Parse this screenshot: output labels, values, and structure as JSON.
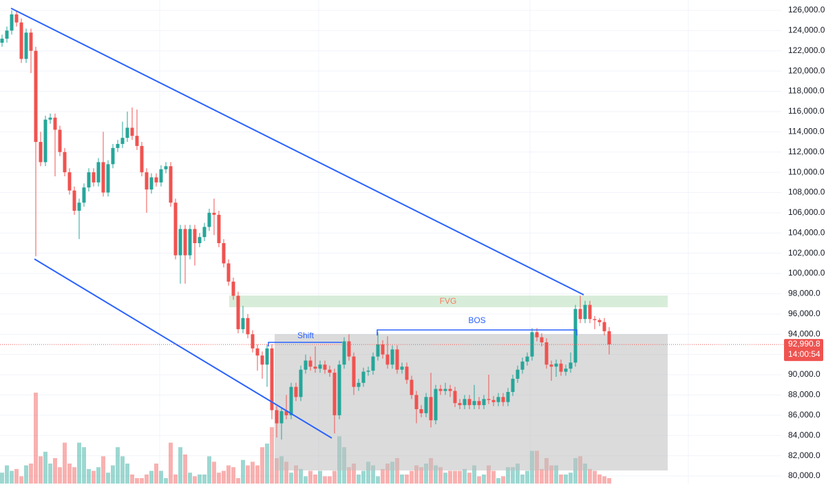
{
  "chart_data": {
    "type": "candlestick",
    "up_color": "#26a69a",
    "down_color": "#ef5350",
    "ylim": [
      79250,
      127020
    ],
    "yticks": [
      {
        "value": 80000,
        "label": "80,000.0"
      },
      {
        "value": 82000,
        "label": "82,000.0"
      },
      {
        "value": 84000,
        "label": "84,000.0"
      },
      {
        "value": 86000,
        "label": "86,000.0"
      },
      {
        "value": 88000,
        "label": "88,000.0"
      },
      {
        "value": 90000,
        "label": "90,000.0"
      },
      {
        "value": 92000,
        "label": "92,000.0"
      },
      {
        "value": 94000,
        "label": "94,000.0"
      },
      {
        "value": 96000,
        "label": "96,000.0"
      },
      {
        "value": 98000,
        "label": "98,000.0"
      },
      {
        "value": 100000,
        "label": "100,000.0"
      },
      {
        "value": 102000,
        "label": "102,000.0"
      },
      {
        "value": 104000,
        "label": "104,000.0"
      },
      {
        "value": 106000,
        "label": "106,000.0"
      },
      {
        "value": 108000,
        "label": "108,000.0"
      },
      {
        "value": 110000,
        "label": "110,000.0"
      },
      {
        "value": 112000,
        "label": "112,000.0"
      },
      {
        "value": 114000,
        "label": "114,000.0"
      },
      {
        "value": 116000,
        "label": "116,000.0"
      },
      {
        "value": 118000,
        "label": "118,000.0"
      },
      {
        "value": 120000,
        "label": "120,000.0"
      },
      {
        "value": 122000,
        "label": "122,000.0"
      },
      {
        "value": 124000,
        "label": "124,000.0"
      },
      {
        "value": 126000,
        "label": "126,000.0"
      }
    ],
    "grid": true,
    "open": [
      122800,
      123200,
      124000,
      125600,
      124800,
      121200,
      123800,
      122000,
      113000,
      111000,
      115200,
      115400,
      114200,
      112000,
      110000,
      108200,
      106200,
      107000,
      108500,
      110000,
      109000,
      111000,
      108000,
      110800,
      112400,
      112800,
      113400,
      114400,
      113600,
      112600,
      110000,
      108300,
      109500,
      109000,
      110300,
      110600,
      107000,
      101800,
      104400,
      101800,
      104400,
      103000,
      103600,
      104600,
      106000,
      105800,
      103000,
      101000,
      99200,
      97800,
      94500,
      95600,
      94000,
      92600,
      91900,
      91000,
      92600,
      86500,
      85200,
      86400,
      86000,
      88800,
      87800,
      90500,
      91400,
      90800,
      90600,
      91000,
      90500,
      90200,
      86000,
      91000,
      93300,
      91800,
      88800,
      89200,
      90300,
      90400,
      91800,
      93000,
      92000,
      91000,
      92500,
      90500,
      90800,
      89500,
      88000,
      86600,
      86200,
      87800,
      85500,
      88600,
      88400,
      88600,
      88400,
      87200,
      87000,
      87600,
      87000,
      87400,
      87000,
      87600,
      87500,
      87300,
      87800,
      87300,
      88300,
      89600,
      90500,
      91300,
      91800,
      94200,
      93700,
      93200,
      91000,
      90800,
      91100,
      90300,
      90600,
      91200,
      96500,
      95500,
      96900,
      95500,
      95400,
      95200,
      94300
    ],
    "high": [
      123600,
      124400,
      126000,
      126000,
      125200,
      124200,
      124200,
      122400,
      114000,
      115600,
      115800,
      115800,
      114600,
      112400,
      110400,
      108600,
      107400,
      108900,
      110400,
      110400,
      111400,
      114000,
      111200,
      112800,
      113200,
      115000,
      116000,
      116400,
      116200,
      113000,
      110400,
      109900,
      109900,
      110700,
      111000,
      111000,
      107400,
      104800,
      104800,
      104800,
      104800,
      104000,
      105000,
      106400,
      107400,
      106200,
      103400,
      101400,
      99600,
      98200,
      96800,
      96000,
      94400,
      93000,
      92300,
      93000,
      93000,
      86900,
      86800,
      88000,
      89200,
      89200,
      90900,
      92000,
      91800,
      92800,
      91400,
      91400,
      90900,
      90600,
      91400,
      93700,
      94000,
      92200,
      89600,
      90700,
      90800,
      92200,
      94200,
      93400,
      93800,
      92900,
      92900,
      91200,
      91200,
      89900,
      88400,
      87000,
      88200,
      90200,
      89000,
      89000,
      89200,
      89000,
      88800,
      87600,
      88000,
      88000,
      89000,
      87800,
      88000,
      90000,
      87900,
      88200,
      88200,
      88700,
      90000,
      90900,
      91700,
      92200,
      94600,
      94600,
      94100,
      93600,
      91400,
      91500,
      91500,
      91000,
      92200,
      96900,
      97800,
      97300,
      97300,
      95800,
      95600,
      95600,
      94700
    ],
    "low": [
      122400,
      122800,
      123600,
      124400,
      120800,
      120800,
      119800,
      101700,
      110600,
      110600,
      114800,
      109600,
      111600,
      109600,
      107800,
      105800,
      103400,
      106600,
      108100,
      108600,
      108600,
      107600,
      107600,
      110400,
      112000,
      112400,
      113000,
      113200,
      112200,
      109600,
      106000,
      107900,
      108600,
      108600,
      109900,
      106600,
      101400,
      99000,
      99000,
      101400,
      100800,
      102600,
      103200,
      104200,
      103800,
      102600,
      100600,
      98800,
      97400,
      94100,
      94100,
      93600,
      92200,
      90400,
      89600,
      88800,
      85600,
      83800,
      83600,
      85600,
      85600,
      87400,
      87400,
      90100,
      90400,
      90200,
      90200,
      90100,
      89800,
      84200,
      85600,
      90600,
      91400,
      88000,
      88400,
      88800,
      89900,
      90000,
      91400,
      91600,
      90600,
      90600,
      90100,
      90100,
      89100,
      87600,
      85200,
      85800,
      85800,
      84800,
      85100,
      88000,
      88000,
      87800,
      86800,
      86600,
      86600,
      86600,
      86600,
      86600,
      86600,
      87100,
      86900,
      86900,
      86900,
      86900,
      87900,
      89200,
      90100,
      90900,
      91400,
      93300,
      92800,
      90600,
      89400,
      89800,
      89900,
      89900,
      90200,
      90800,
      95100,
      95100,
      95100,
      94500,
      94800,
      93900,
      92000
    ],
    "close": [
      123200,
      124000,
      125600,
      124800,
      121200,
      123800,
      122000,
      113000,
      111000,
      115200,
      115400,
      114200,
      112000,
      110000,
      108200,
      106200,
      107000,
      108500,
      110000,
      109000,
      111000,
      108000,
      110800,
      112400,
      112800,
      113400,
      114400,
      113600,
      112600,
      110000,
      108300,
      109500,
      109000,
      110300,
      110600,
      107000,
      101800,
      104400,
      101800,
      104400,
      103000,
      103600,
      104600,
      106000,
      105800,
      103000,
      101000,
      99200,
      97800,
      94500,
      95600,
      94000,
      92600,
      91900,
      91000,
      92600,
      86500,
      85200,
      86400,
      86000,
      88800,
      87800,
      90500,
      91400,
      90800,
      90600,
      91000,
      90500,
      90200,
      86000,
      91000,
      93300,
      91800,
      88800,
      89200,
      90300,
      90400,
      91800,
      93000,
      92000,
      91000,
      92500,
      90500,
      90800,
      89500,
      88000,
      86600,
      86200,
      87800,
      85500,
      88600,
      88400,
      88600,
      88400,
      87200,
      87000,
      87600,
      87000,
      87400,
      87000,
      87600,
      87500,
      87300,
      87800,
      87300,
      88300,
      89600,
      90500,
      91300,
      91800,
      94200,
      93700,
      93200,
      91000,
      90800,
      91100,
      90300,
      90600,
      91200,
      96500,
      95500,
      96900,
      95500,
      95400,
      95200,
      94300,
      93000
    ],
    "volume": [
      12,
      20,
      14,
      16,
      8,
      20,
      22,
      100,
      30,
      35,
      22,
      28,
      18,
      45,
      22,
      18,
      45,
      40,
      16,
      14,
      18,
      30,
      12,
      20,
      40,
      30,
      22,
      10,
      6,
      6,
      10,
      14,
      22,
      14,
      6,
      45,
      10,
      40,
      32,
      12,
      8,
      10,
      10,
      30,
      24,
      12,
      14,
      20,
      18,
      6,
      26,
      20,
      24,
      20,
      40,
      44,
      62,
      28,
      30,
      24,
      12,
      20,
      16,
      8,
      14,
      10,
      14,
      8,
      8,
      14,
      52,
      40,
      18,
      22,
      10,
      14,
      24,
      20,
      8,
      16,
      22,
      24,
      28,
      10,
      10,
      14,
      20,
      18,
      22,
      28,
      20,
      18,
      12,
      14,
      14,
      14,
      16,
      12,
      20,
      8,
      10,
      20,
      14,
      6,
      8,
      18,
      18,
      22,
      10,
      14,
      36,
      36,
      16,
      28,
      20,
      20,
      10,
      10,
      12,
      28,
      30,
      22,
      16,
      14,
      10,
      8,
      6
    ],
    "annotations": {
      "fvg": "FVG",
      "bos": "BOS",
      "shift": "Shift"
    },
    "last_price": {
      "value": 92990.8,
      "label": "92,990.8"
    },
    "countdown": "14:00:54"
  }
}
